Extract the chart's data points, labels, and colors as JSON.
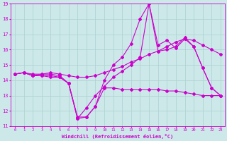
{
  "xlabel": "Windchill (Refroidissement éolien,°C)",
  "xlim": [
    -0.5,
    23.5
  ],
  "ylim": [
    11,
    19
  ],
  "xticks": [
    0,
    1,
    2,
    3,
    4,
    5,
    6,
    7,
    8,
    9,
    10,
    11,
    12,
    13,
    14,
    15,
    16,
    17,
    18,
    19,
    20,
    21,
    22,
    23
  ],
  "yticks": [
    11,
    12,
    13,
    14,
    15,
    16,
    17,
    18,
    19
  ],
  "background_color": "#cce8e8",
  "line_color": "#cc00cc",
  "grid_color": "#aad0d0",
  "series": [
    {
      "x": [
        0,
        1,
        2,
        3,
        4,
        5,
        6,
        7,
        8,
        9,
        10,
        11,
        12,
        13,
        14,
        15,
        16,
        17,
        18,
        19,
        20,
        21,
        22,
        23
      ],
      "y": [
        14.4,
        14.5,
        14.3,
        14.3,
        14.3,
        14.2,
        13.8,
        11.5,
        11.6,
        12.3,
        13.5,
        13.5,
        13.4,
        13.4,
        13.4,
        13.4,
        13.4,
        13.3,
        13.3,
        13.2,
        13.1,
        13.0,
        13.0,
        13.0
      ]
    },
    {
      "x": [
        0,
        1,
        2,
        3,
        4,
        5,
        6,
        7,
        8,
        9,
        10,
        11,
        12,
        13,
        14,
        15,
        16,
        17,
        18,
        19,
        20,
        21,
        22,
        23
      ],
      "y": [
        14.4,
        14.5,
        14.3,
        14.3,
        14.2,
        14.2,
        13.8,
        11.5,
        12.2,
        13.0,
        13.6,
        14.2,
        14.6,
        15.0,
        15.5,
        19.0,
        16.3,
        16.6,
        16.1,
        16.7,
        16.2,
        14.8,
        13.5,
        13.0
      ]
    },
    {
      "x": [
        0,
        1,
        2,
        3,
        4,
        5,
        6,
        7,
        8,
        9,
        10,
        11,
        12,
        13,
        14,
        15,
        16,
        17,
        18,
        19,
        20,
        21,
        22,
        23
      ],
      "y": [
        14.4,
        14.5,
        14.3,
        14.4,
        14.4,
        14.3,
        13.8,
        11.6,
        11.6,
        12.3,
        14.0,
        15.0,
        15.5,
        16.4,
        18.0,
        19.0,
        15.9,
        16.0,
        16.2,
        16.8,
        16.2,
        14.8,
        13.5,
        13.0
      ]
    },
    {
      "x": [
        0,
        1,
        2,
        3,
        4,
        5,
        6,
        7,
        8,
        9,
        10,
        11,
        12,
        13,
        14,
        15,
        16,
        17,
        18,
        19,
        20,
        21,
        22,
        23
      ],
      "y": [
        14.4,
        14.5,
        14.4,
        14.4,
        14.5,
        14.4,
        14.3,
        14.2,
        14.2,
        14.3,
        14.5,
        14.7,
        14.9,
        15.2,
        15.4,
        15.7,
        15.9,
        16.2,
        16.5,
        16.7,
        16.6,
        16.3,
        16.0,
        15.7
      ]
    }
  ]
}
